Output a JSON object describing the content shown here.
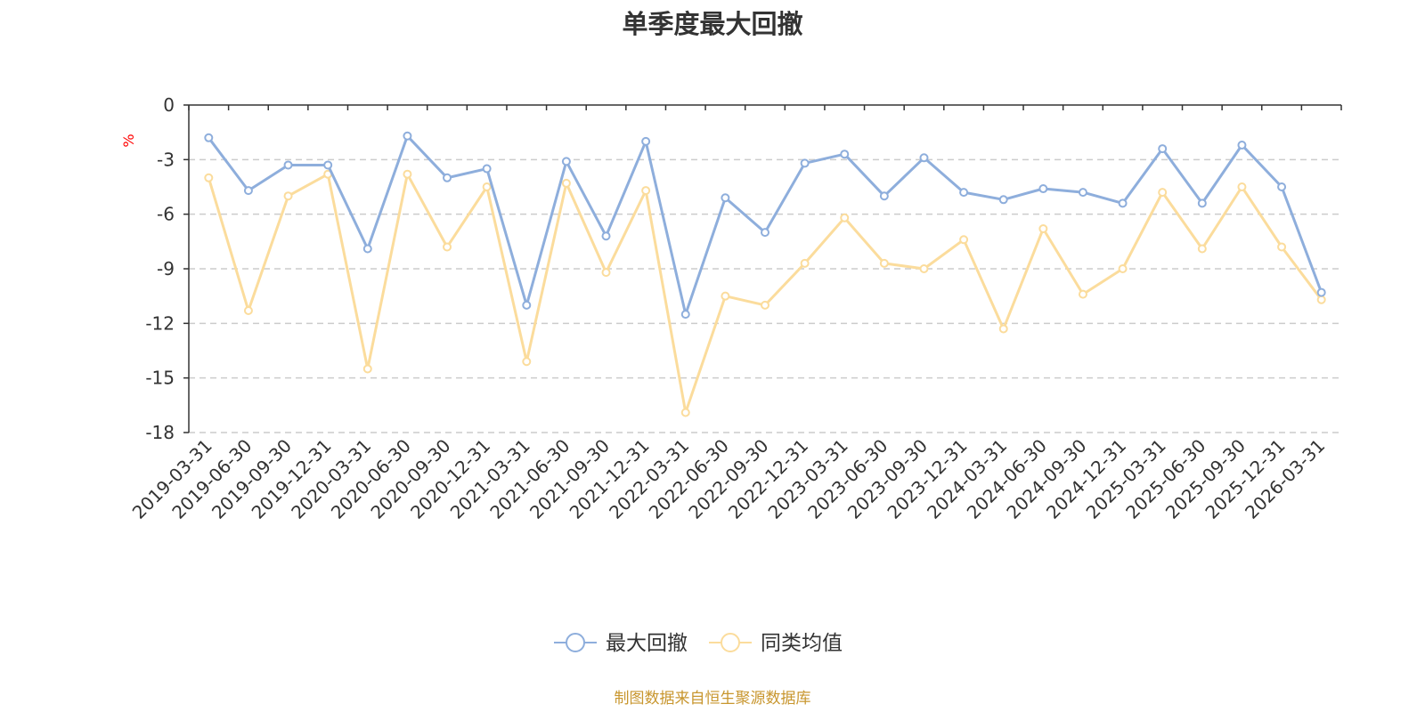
{
  "source_note": "制图数据来自恒生聚源数据库",
  "chart_data": {
    "type": "line",
    "title": "单季度最大回撤",
    "ylabel": "%",
    "xlabel": "",
    "ylim": [
      -18,
      0
    ],
    "yticks": [
      0,
      -3,
      -6,
      -9,
      -12,
      -15,
      -18
    ],
    "grid": true,
    "legend_position": "bottom-center",
    "categories": [
      "2019-03-31",
      "2019-06-30",
      "2019-09-30",
      "2019-12-31",
      "2020-03-31",
      "2020-06-30",
      "2020-09-30",
      "2020-12-31",
      "2021-03-31",
      "2021-06-30",
      "2021-09-30",
      "2021-12-31",
      "2022-03-31",
      "2022-06-30",
      "2022-09-30",
      "2022-12-31",
      "2023-03-31",
      "2023-06-30",
      "2023-09-30",
      "2023-12-31",
      "2024-03-31",
      "2024-06-30",
      "2024-09-30",
      "2024-12-31",
      "2025-03-31",
      "2025-06-30",
      "2025-09-30",
      "2025-12-31",
      "2026-03-31"
    ],
    "series": [
      {
        "name": "最大回撤",
        "color": "#8eaedc",
        "values": [
          -1.8,
          -4.7,
          -3.3,
          -3.3,
          -7.9,
          -1.7,
          -4.0,
          -3.5,
          -11.0,
          -3.1,
          -7.2,
          -2.0,
          -11.5,
          -5.1,
          -7.0,
          -3.2,
          -2.7,
          -5.0,
          -2.9,
          -4.8,
          -5.2,
          -4.6,
          -4.8,
          -5.4,
          -2.4,
          -5.4,
          -2.2,
          -4.5,
          -10.3
        ]
      },
      {
        "name": "同类均值",
        "color": "#fbdc9c",
        "values": [
          -4.0,
          -11.3,
          -5.0,
          -3.8,
          -14.5,
          -3.8,
          -7.8,
          -4.5,
          -14.1,
          -4.3,
          -9.2,
          -4.7,
          -16.9,
          -10.5,
          -11.0,
          -8.7,
          -6.2,
          -8.7,
          -9.0,
          -7.4,
          -12.3,
          -6.8,
          -10.4,
          -9.0,
          -4.8,
          -7.9,
          -4.5,
          -7.8,
          -10.7
        ]
      }
    ]
  }
}
